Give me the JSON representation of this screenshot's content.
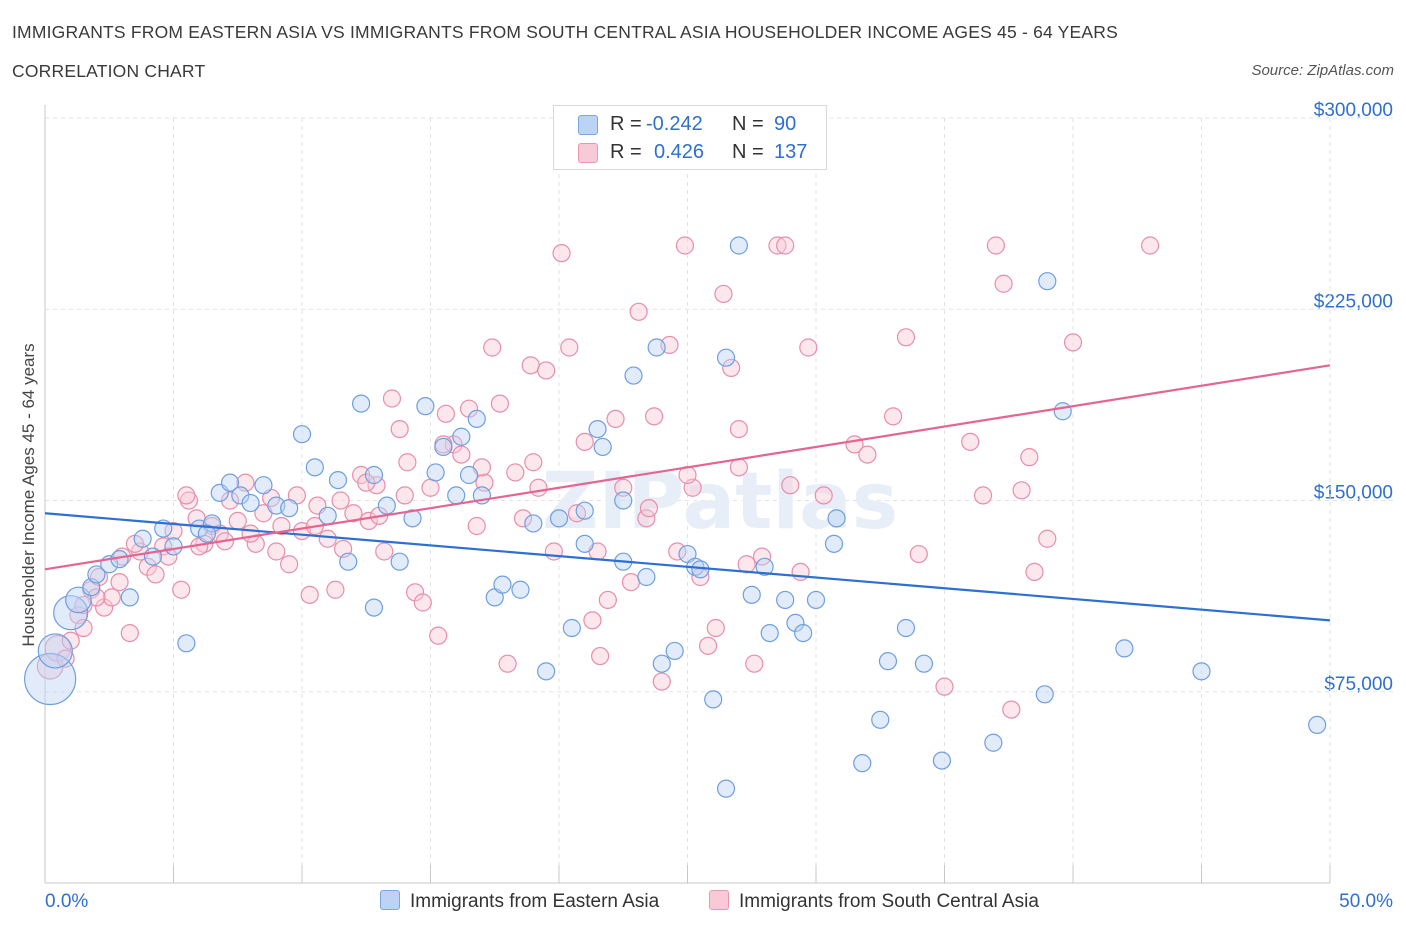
{
  "title": "IMMIGRANTS FROM EASTERN ASIA VS IMMIGRANTS FROM SOUTH CENTRAL ASIA HOUSEHOLDER INCOME AGES 45 - 64 YEARS",
  "subtitle": "CORRELATION CHART",
  "source": "Source: ZipAtlas.com",
  "watermark": "ZIPatlas",
  "colors": {
    "blue_fill": "#bcd3f5",
    "blue_stroke": "#6e9fe0",
    "blue_line": "#2f6fd1",
    "pink_fill": "#f8c9d6",
    "pink_stroke": "#e78eab",
    "pink_line": "#e56591",
    "axis_text": "#2e6fd0",
    "grid": "#e3e3e3"
  },
  "legend_top": {
    "rows": [
      {
        "r_label": "R =",
        "r_value": "-0.242",
        "n_label": "N =",
        "n_value": "90"
      },
      {
        "r_label": "R =",
        "r_value": "0.426",
        "n_label": "N =",
        "n_value": "137"
      }
    ]
  },
  "chart_data": {
    "type": "scatter",
    "xlabel": "",
    "ylabel": "Householder Income Ages 45 - 64 years",
    "xlim": [
      0,
      50
    ],
    "ylim": [
      0,
      300000
    ],
    "x_tick_labels": [
      "0.0%",
      "50.0%"
    ],
    "y_ticks": [
      75000,
      150000,
      225000,
      300000
    ],
    "y_tick_labels": [
      "$75,000",
      "$150,000",
      "$225,000",
      "$300,000"
    ],
    "grid": true,
    "legend": [
      "Immigrants from Eastern Asia",
      "Immigrants from South Central Asia"
    ],
    "series": [
      {
        "name": "Immigrants from Eastern Asia",
        "r": -0.242,
        "n": 90,
        "trend": {
          "x": [
            0,
            50
          ],
          "y": [
            145000,
            103000
          ]
        },
        "points": [
          [
            0.2,
            80000,
            3
          ],
          [
            0.4,
            91000,
            2
          ],
          [
            1.0,
            106000,
            2
          ],
          [
            1.3,
            111000,
            1.5
          ],
          [
            1.8,
            116000,
            1
          ],
          [
            2.0,
            121000,
            1
          ],
          [
            2.5,
            125000,
            1
          ],
          [
            2.9,
            127000,
            1
          ],
          [
            3.3,
            112000,
            1
          ],
          [
            3.8,
            135000,
            1
          ],
          [
            4.2,
            128000,
            1
          ],
          [
            4.6,
            139000,
            1
          ],
          [
            5.0,
            132000,
            1
          ],
          [
            5.5,
            94000,
            1
          ],
          [
            6.0,
            139000,
            1
          ],
          [
            6.5,
            141000,
            1
          ],
          [
            6.8,
            153000,
            1
          ],
          [
            7.2,
            157000,
            1
          ],
          [
            7.6,
            152000,
            1
          ],
          [
            8.0,
            149000,
            1
          ],
          [
            8.5,
            156000,
            1
          ],
          [
            9.0,
            148000,
            1
          ],
          [
            9.5,
            147000,
            1
          ],
          [
            10.0,
            176000,
            1
          ],
          [
            10.5,
            163000,
            1
          ],
          [
            11.0,
            144000,
            1
          ],
          [
            11.4,
            158000,
            1
          ],
          [
            11.8,
            126000,
            1
          ],
          [
            12.3,
            188000,
            1
          ],
          [
            12.8,
            160000,
            1
          ],
          [
            13.3,
            148000,
            1
          ],
          [
            13.8,
            126000,
            1
          ],
          [
            14.3,
            143000,
            1
          ],
          [
            14.8,
            187000,
            1
          ],
          [
            15.2,
            161000,
            1
          ],
          [
            15.5,
            171000,
            1
          ],
          [
            16.0,
            152000,
            1
          ],
          [
            16.2,
            175000,
            1
          ],
          [
            16.8,
            182000,
            1
          ],
          [
            17.0,
            152000,
            1
          ],
          [
            17.5,
            112000,
            1
          ],
          [
            17.8,
            117000,
            1
          ],
          [
            18.5,
            115000,
            1
          ],
          [
            19.0,
            141000,
            1
          ],
          [
            19.5,
            83000,
            1
          ],
          [
            20.0,
            143000,
            1
          ],
          [
            20.5,
            100000,
            1
          ],
          [
            21.0,
            133000,
            1
          ],
          [
            21.5,
            178000,
            1
          ],
          [
            21.7,
            171000,
            1
          ],
          [
            22.5,
            126000,
            1
          ],
          [
            22.5,
            150000,
            1
          ],
          [
            22.9,
            199000,
            1
          ],
          [
            23.4,
            120000,
            1
          ],
          [
            23.8,
            210000,
            1
          ],
          [
            24.0,
            86000,
            1
          ],
          [
            24.5,
            91000,
            1
          ],
          [
            25.0,
            129000,
            1
          ],
          [
            25.3,
            124000,
            1
          ],
          [
            25.5,
            123000,
            1
          ],
          [
            26.0,
            72000,
            1
          ],
          [
            26.5,
            37000,
            1
          ],
          [
            26.5,
            206000,
            1
          ],
          [
            27.0,
            250000,
            1
          ],
          [
            27.5,
            113000,
            1
          ],
          [
            28.0,
            124000,
            1
          ],
          [
            28.2,
            98000,
            1
          ],
          [
            28.8,
            111000,
            1
          ],
          [
            29.2,
            102000,
            1
          ],
          [
            29.5,
            98000,
            1
          ],
          [
            30.0,
            111000,
            1
          ],
          [
            30.7,
            133000,
            1
          ],
          [
            30.8,
            143000,
            1
          ],
          [
            31.8,
            47000,
            1
          ],
          [
            32.5,
            64000,
            1
          ],
          [
            32.8,
            87000,
            1
          ],
          [
            33.5,
            100000,
            1
          ],
          [
            34.2,
            86000,
            1
          ],
          [
            34.9,
            48000,
            1
          ],
          [
            36.9,
            55000,
            1
          ],
          [
            38.9,
            74000,
            1
          ],
          [
            39.0,
            236000,
            1
          ],
          [
            39.6,
            185000,
            1
          ],
          [
            42.0,
            92000,
            1
          ],
          [
            45.0,
            83000,
            1
          ],
          [
            49.5,
            62000,
            1
          ],
          [
            21.0,
            146000,
            1
          ],
          [
            16.5,
            160000,
            1
          ],
          [
            12.8,
            108000,
            1
          ],
          [
            6.3,
            137000,
            1
          ]
        ]
      },
      {
        "name": "Immigrants from South Central Asia",
        "r": 0.426,
        "n": 137,
        "trend": {
          "x": [
            0,
            50
          ],
          "y": [
            123000,
            203000
          ]
        },
        "points": [
          [
            0.2,
            85000,
            1.5
          ],
          [
            0.5,
            92000,
            1.5
          ],
          [
            1.0,
            95000,
            1
          ],
          [
            1.3,
            105000,
            1
          ],
          [
            1.5,
            100000,
            1
          ],
          [
            1.8,
            115000,
            1
          ],
          [
            2.1,
            120000,
            1
          ],
          [
            2.3,
            108000,
            1
          ],
          [
            2.6,
            112000,
            1
          ],
          [
            2.9,
            118000,
            1
          ],
          [
            3.0,
            128000,
            1
          ],
          [
            3.3,
            98000,
            1
          ],
          [
            3.7,
            130000,
            1
          ],
          [
            4.0,
            124000,
            1
          ],
          [
            4.3,
            121000,
            1
          ],
          [
            4.6,
            132000,
            1
          ],
          [
            5.0,
            138000,
            1
          ],
          [
            5.3,
            115000,
            1
          ],
          [
            5.6,
            150000,
            1
          ],
          [
            5.9,
            143000,
            1
          ],
          [
            6.2,
            133000,
            1
          ],
          [
            6.5,
            140000,
            1
          ],
          [
            6.8,
            137000,
            1
          ],
          [
            7.2,
            150000,
            1
          ],
          [
            7.5,
            142000,
            1
          ],
          [
            7.8,
            157000,
            1
          ],
          [
            8.2,
            133000,
            1
          ],
          [
            8.5,
            145000,
            1
          ],
          [
            8.8,
            151000,
            1
          ],
          [
            9.2,
            140000,
            1
          ],
          [
            9.5,
            125000,
            1
          ],
          [
            9.8,
            152000,
            1
          ],
          [
            10.0,
            138000,
            1
          ],
          [
            10.3,
            113000,
            1
          ],
          [
            10.6,
            148000,
            1
          ],
          [
            11.0,
            135000,
            1
          ],
          [
            11.3,
            115000,
            1
          ],
          [
            11.6,
            131000,
            1
          ],
          [
            12.0,
            145000,
            1
          ],
          [
            12.3,
            160000,
            1
          ],
          [
            12.6,
            142000,
            1
          ],
          [
            12.9,
            156000,
            1
          ],
          [
            13.2,
            130000,
            1
          ],
          [
            13.5,
            190000,
            1
          ],
          [
            13.8,
            178000,
            1
          ],
          [
            14.1,
            165000,
            1
          ],
          [
            14.4,
            114000,
            1
          ],
          [
            14.7,
            110000,
            1
          ],
          [
            15.0,
            155000,
            1
          ],
          [
            15.3,
            97000,
            1
          ],
          [
            15.6,
            184000,
            1
          ],
          [
            15.9,
            172000,
            1
          ],
          [
            16.2,
            168000,
            1
          ],
          [
            16.5,
            186000,
            1
          ],
          [
            16.8,
            140000,
            1
          ],
          [
            17.1,
            157000,
            1
          ],
          [
            17.4,
            210000,
            1
          ],
          [
            17.7,
            188000,
            1
          ],
          [
            18.0,
            86000,
            1
          ],
          [
            18.3,
            161000,
            1
          ],
          [
            18.6,
            143000,
            1
          ],
          [
            18.9,
            203000,
            1
          ],
          [
            19.2,
            155000,
            1
          ],
          [
            19.5,
            201000,
            1
          ],
          [
            19.8,
            130000,
            1
          ],
          [
            20.1,
            247000,
            1
          ],
          [
            20.4,
            210000,
            1
          ],
          [
            20.7,
            145000,
            1
          ],
          [
            21.0,
            173000,
            1
          ],
          [
            21.3,
            103000,
            1
          ],
          [
            21.6,
            89000,
            1
          ],
          [
            21.9,
            111000,
            1
          ],
          [
            22.2,
            182000,
            1
          ],
          [
            22.5,
            155000,
            1
          ],
          [
            22.8,
            118000,
            1
          ],
          [
            23.1,
            224000,
            1
          ],
          [
            23.4,
            143000,
            1
          ],
          [
            23.7,
            183000,
            1
          ],
          [
            24.0,
            79000,
            1
          ],
          [
            24.3,
            211000,
            1
          ],
          [
            24.6,
            130000,
            1
          ],
          [
            24.9,
            250000,
            1
          ],
          [
            25.2,
            155000,
            1
          ],
          [
            25.5,
            120000,
            1
          ],
          [
            25.8,
            93000,
            1
          ],
          [
            26.1,
            100000,
            1
          ],
          [
            26.4,
            231000,
            1
          ],
          [
            26.7,
            202000,
            1
          ],
          [
            27.0,
            178000,
            1
          ],
          [
            27.3,
            125000,
            1
          ],
          [
            27.6,
            86000,
            1
          ],
          [
            27.9,
            128000,
            1
          ],
          [
            28.5,
            250000,
            1
          ],
          [
            28.8,
            250000,
            1
          ],
          [
            29.0,
            156000,
            1
          ],
          [
            29.4,
            122000,
            1
          ],
          [
            29.7,
            210000,
            1
          ],
          [
            30.3,
            152000,
            1
          ],
          [
            31.5,
            172000,
            1
          ],
          [
            32.0,
            168000,
            1
          ],
          [
            33.0,
            183000,
            1
          ],
          [
            33.5,
            214000,
            1
          ],
          [
            34.0,
            129000,
            1
          ],
          [
            35.0,
            77000,
            1
          ],
          [
            36.0,
            173000,
            1
          ],
          [
            36.5,
            152000,
            1
          ],
          [
            37.0,
            250000,
            1
          ],
          [
            37.3,
            235000,
            1
          ],
          [
            37.6,
            68000,
            1
          ],
          [
            38.0,
            154000,
            1
          ],
          [
            38.3,
            167000,
            1
          ],
          [
            38.5,
            122000,
            1
          ],
          [
            39.0,
            135000,
            1
          ],
          [
            40.0,
            212000,
            1
          ],
          [
            43.0,
            250000,
            1
          ],
          [
            5.5,
            152000,
            1
          ],
          [
            7.0,
            134000,
            1
          ],
          [
            8.0,
            137000,
            1
          ],
          [
            9.0,
            130000,
            1
          ],
          [
            10.5,
            140000,
            1
          ],
          [
            11.5,
            150000,
            1
          ],
          [
            12.5,
            157000,
            1
          ],
          [
            13.0,
            144000,
            1
          ],
          [
            14.0,
            152000,
            1
          ],
          [
            3.5,
            133000,
            1
          ],
          [
            4.8,
            128000,
            1
          ],
          [
            6.0,
            132000,
            1
          ],
          [
            2.0,
            112000,
            1
          ],
          [
            1.5,
            109000,
            1
          ],
          [
            0.8,
            88000,
            1
          ],
          [
            19.0,
            165000,
            1
          ],
          [
            17.0,
            163000,
            1
          ],
          [
            21.5,
            130000,
            1
          ],
          [
            23.5,
            147000,
            1
          ],
          [
            25.0,
            160000,
            1
          ],
          [
            27.0,
            163000,
            1
          ],
          [
            15.5,
            172000,
            1
          ]
        ]
      }
    ]
  },
  "legend_bottom": {
    "blue_label": "Immigrants from Eastern Asia",
    "pink_label": "Immigrants from South Central Asia"
  }
}
